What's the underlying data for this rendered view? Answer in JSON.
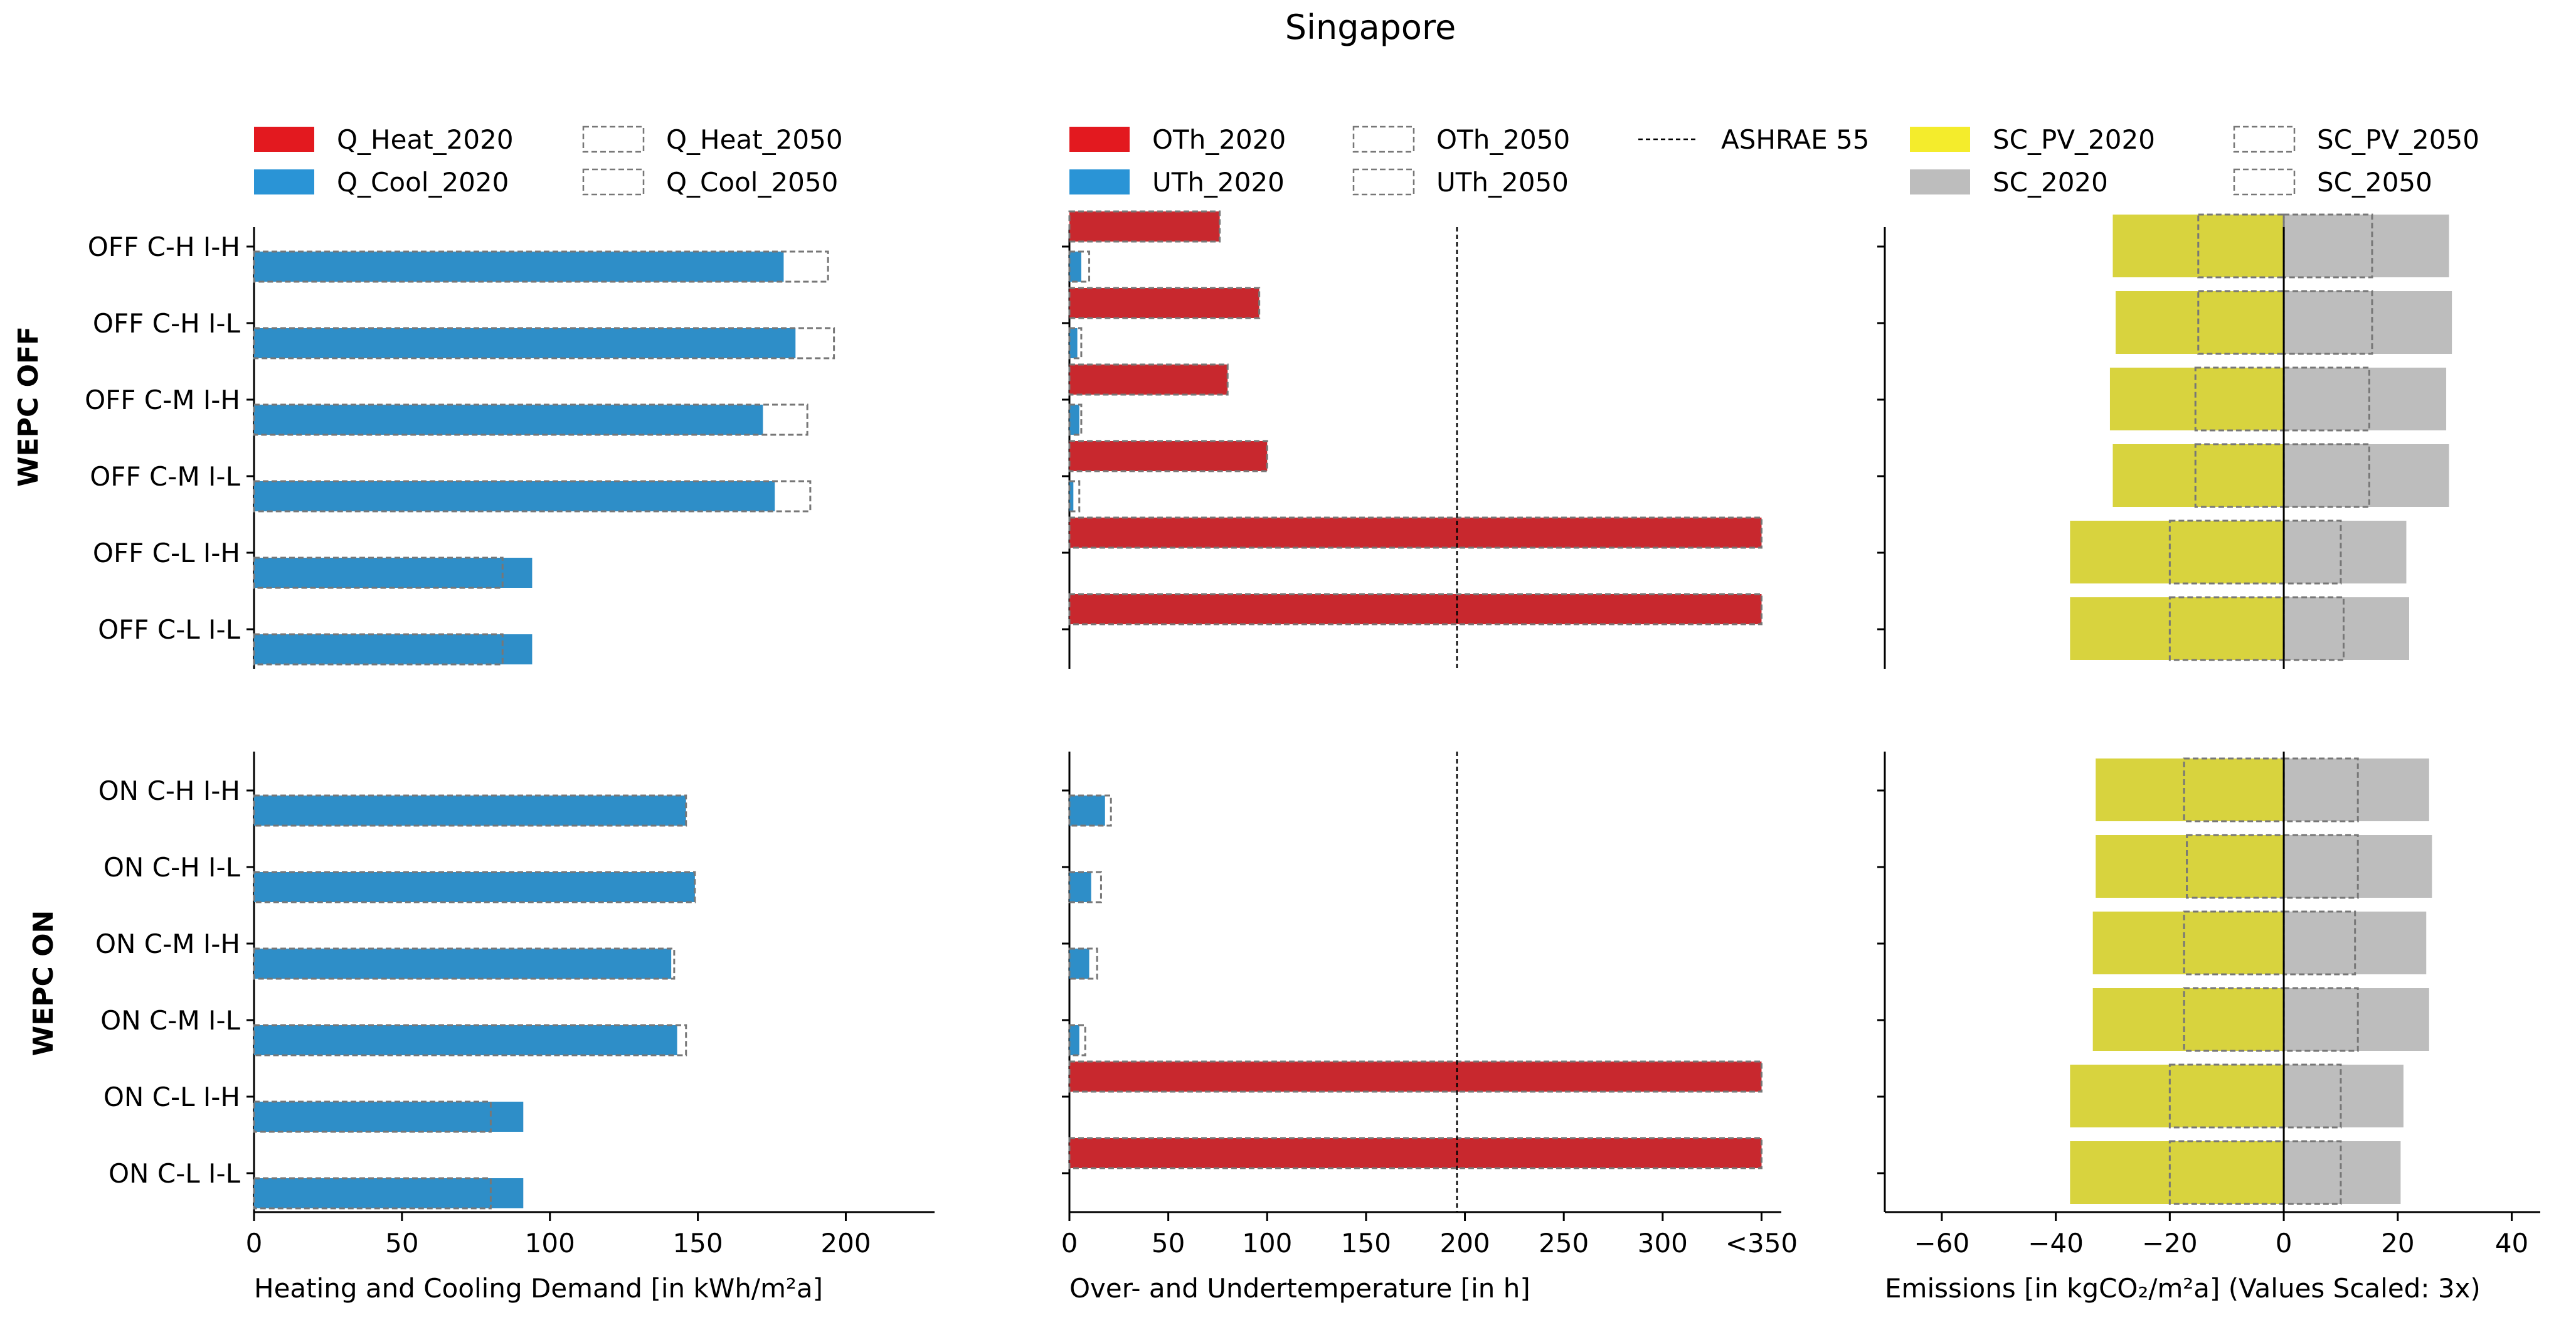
{
  "title": "Singapore",
  "row_labels": [
    "OFF C-H I-H",
    "OFF C-H I-L",
    "OFF C-M I-H",
    "OFF C-M I-L",
    "OFF C-L I-H",
    "OFF C-L I-L",
    "ON C-H I-H",
    "ON C-H I-L",
    "ON C-M I-H",
    "ON C-M I-L",
    "ON C-L I-H",
    "ON C-L I-L"
  ],
  "group_labels": [
    "WEPC OFF",
    "WEPC ON"
  ],
  "colors": {
    "heat": "#c8282e",
    "cool": "#2e8ec8",
    "heat_legend": "#e3191f",
    "cool_legend": "#2a94d6",
    "pv": "#d8d33e",
    "pv_legend": "#f4ec2c",
    "sc": "#bdbdbd",
    "dashed": "#777777"
  },
  "chart_data": [
    {
      "type": "bar",
      "orientation": "horizontal",
      "xlabel": "Heating and Cooling Demand [in kWh/m²a]",
      "xlim": [
        0,
        230
      ],
      "xticks": [
        0,
        50,
        100,
        150,
        200
      ],
      "xtick_labels": [
        "0",
        "50",
        "100",
        "150",
        "200"
      ],
      "legend": [
        {
          "label": "Q_Heat_2020",
          "style": "filled",
          "color_key": "heat_legend"
        },
        {
          "label": "Q_Cool_2020",
          "style": "filled",
          "color_key": "cool_legend"
        },
        {
          "label": "Q_Heat_2050",
          "style": "dashed"
        },
        {
          "label": "Q_Cool_2050",
          "style": "dashed"
        }
      ],
      "series": [
        {
          "name": "Q_Heat_2020",
          "values": [
            0,
            0,
            0,
            0,
            0,
            0,
            0,
            0,
            0,
            0,
            0,
            0
          ]
        },
        {
          "name": "Q_Cool_2020",
          "values": [
            179,
            183,
            172,
            176,
            94,
            94,
            146,
            149,
            141,
            143,
            91,
            91
          ]
        },
        {
          "name": "Q_Heat_2050",
          "values": [
            0,
            0,
            0,
            0,
            0,
            0,
            0,
            0,
            0,
            0,
            0,
            0
          ]
        },
        {
          "name": "Q_Cool_2050",
          "values": [
            194,
            196,
            187,
            188,
            84,
            84,
            146,
            149,
            142,
            146,
            80,
            80
          ]
        }
      ]
    },
    {
      "type": "bar",
      "orientation": "horizontal",
      "xlabel": "Over- and Undertemperature [in h]",
      "xlim": [
        0,
        360
      ],
      "xticks": [
        0,
        50,
        100,
        150,
        200,
        250,
        300,
        350
      ],
      "xtick_labels": [
        "0",
        "50",
        "100",
        "150",
        "200",
        "250",
        "300",
        "<350"
      ],
      "reference_line": {
        "label": "ASHRAE 55",
        "value": 196
      },
      "legend": [
        {
          "label": "OTh_2020",
          "style": "filled",
          "color_key": "heat_legend"
        },
        {
          "label": "UTh_2020",
          "style": "filled",
          "color_key": "cool_legend"
        },
        {
          "label": "OTh_2050",
          "style": "dashed"
        },
        {
          "label": "UTh_2050",
          "style": "dashed"
        },
        {
          "label": "ASHRAE 55",
          "style": "line"
        }
      ],
      "series": [
        {
          "name": "OTh_2020",
          "values": [
            76,
            96,
            80,
            100,
            350,
            350,
            0,
            0,
            0,
            0,
            350,
            350
          ]
        },
        {
          "name": "UTh_2020",
          "values": [
            6,
            4,
            5,
            2,
            0,
            0,
            18,
            11,
            10,
            5,
            0,
            0
          ]
        },
        {
          "name": "OTh_2050",
          "values": [
            76,
            96,
            80,
            100,
            350,
            350,
            0,
            0,
            0,
            0,
            350,
            350
          ]
        },
        {
          "name": "UTh_2050",
          "values": [
            10,
            6,
            6,
            5,
            0,
            0,
            21,
            16,
            14,
            8,
            0,
            0
          ]
        }
      ]
    },
    {
      "type": "bar",
      "orientation": "horizontal",
      "xlabel": "Emissions [in kgCO₂/m²a] (Values Scaled: 3x)",
      "xlim": [
        -70,
        45
      ],
      "xticks": [
        -60,
        -40,
        -20,
        0,
        20,
        40
      ],
      "xtick_labels": [
        "−60",
        "−40",
        "−20",
        "0",
        "20",
        "40"
      ],
      "legend": [
        {
          "label": "SC_PV_2020",
          "style": "filled",
          "color_key": "pv_legend"
        },
        {
          "label": "SC_2020",
          "style": "filled",
          "color_key": "sc"
        },
        {
          "label": "SC_PV_2050",
          "style": "dashed"
        },
        {
          "label": "SC_2050",
          "style": "dashed"
        }
      ],
      "series": [
        {
          "name": "SC_PV_2020",
          "values": [
            -30,
            -29.5,
            -30.5,
            -30,
            -37.5,
            -37.5,
            -33,
            -33,
            -33.5,
            -33.5,
            -37.5,
            -37.5
          ]
        },
        {
          "name": "SC_2020",
          "values": [
            29,
            29.5,
            28.5,
            29,
            21.5,
            22,
            25.5,
            26,
            25,
            25.5,
            21,
            20.5
          ]
        },
        {
          "name": "SC_PV_2050",
          "values": [
            -15,
            -15,
            -15.5,
            -15.5,
            -20,
            -20,
            -17.5,
            -17,
            -17.5,
            -17.5,
            -20,
            -20
          ]
        },
        {
          "name": "SC_2050",
          "values": [
            15.5,
            15.5,
            15,
            15,
            10,
            10.5,
            13,
            13,
            12.5,
            13,
            10,
            10
          ]
        }
      ]
    }
  ]
}
